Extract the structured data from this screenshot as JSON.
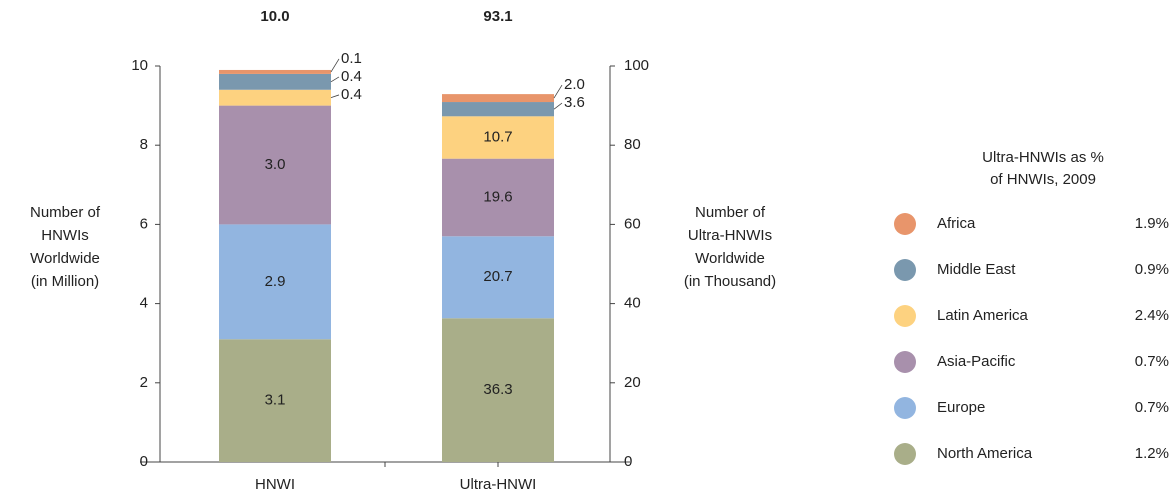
{
  "chart_data": {
    "type": "bar",
    "stacked": true,
    "categories": [
      "HNWI",
      "Ultra-HNWI"
    ],
    "category_axis": [
      "y",
      "y2"
    ],
    "total_labels": [
      "10.0",
      "93.1"
    ],
    "ylabel": [
      "Number of",
      "HNWIs",
      "Worldwide",
      "(in Million)"
    ],
    "y2label": [
      "Number of",
      "Ultra-HNWIs",
      "Worldwide",
      "(in Thousand)"
    ],
    "ylim": [
      0,
      10
    ],
    "yticks": [
      0,
      2,
      4,
      6,
      8,
      10
    ],
    "y2lim": [
      0,
      100
    ],
    "y2ticks": [
      0,
      20,
      40,
      60,
      80,
      100
    ],
    "legend_title": [
      "Ultra-HNWIs as %",
      "of HNWIs, 2009"
    ],
    "series": [
      {
        "name": "North America",
        "color": "#a9ae89",
        "values": [
          3.1,
          36.3
        ],
        "value_labels": [
          "3.1",
          "36.3"
        ],
        "share": 1.2,
        "share_label": "1.2%"
      },
      {
        "name": "Europe",
        "color": "#92b5e0",
        "values": [
          2.9,
          20.7
        ],
        "value_labels": [
          "2.9",
          "20.7"
        ],
        "share": 0.7,
        "share_label": "0.7%"
      },
      {
        "name": "Asia-Pacific",
        "color": "#a890ac",
        "values": [
          3.0,
          19.6
        ],
        "value_labels": [
          "3.0",
          "19.6"
        ],
        "share": 0.7,
        "share_label": "0.7%"
      },
      {
        "name": "Latin America",
        "color": "#fdd280",
        "values": [
          0.4,
          10.7
        ],
        "value_labels": [
          "0.4",
          "10.7"
        ],
        "share": 2.4,
        "share_label": "2.4%"
      },
      {
        "name": "Middle East",
        "color": "#7a98ae",
        "values": [
          0.4,
          3.6
        ],
        "value_labels": [
          "0.4",
          "3.6"
        ],
        "share": 0.9,
        "share_label": "0.9%"
      },
      {
        "name": "Africa",
        "color": "#e8956b",
        "values": [
          0.1,
          2.0
        ],
        "value_labels": [
          "0.1",
          "2.0"
        ],
        "share": 1.9,
        "share_label": "1.9%"
      }
    ]
  }
}
